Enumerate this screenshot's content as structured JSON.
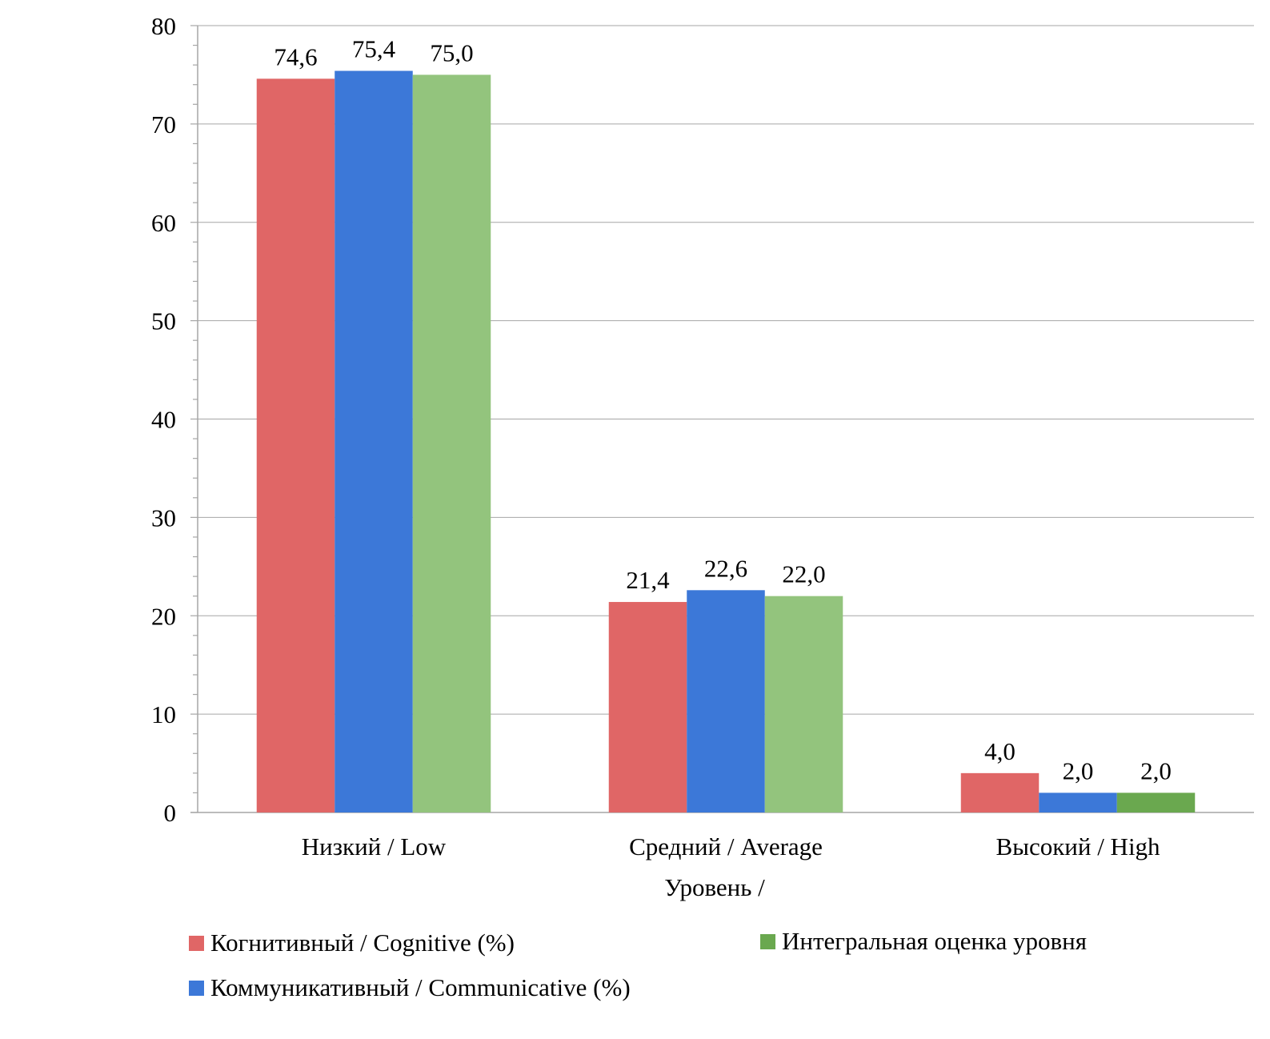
{
  "chart_data": {
    "type": "bar",
    "categories": [
      "Низкий / Low",
      "Средний / Average",
      "Высокий / High"
    ],
    "series": [
      {
        "name": "Когнитивный / Cognitive (%)",
        "values": [
          74.6,
          21.4,
          4.0
        ],
        "labels": [
          "74,6",
          "21,4",
          "4,0"
        ]
      },
      {
        "name": "Коммуникативный / Communicative (%)",
        "values": [
          75.4,
          22.6,
          2.0
        ],
        "labels": [
          "75,4",
          "22,6",
          "2,0"
        ]
      },
      {
        "name": "Интегральная оценка уровня",
        "values": [
          75.0,
          22.0,
          2.0
        ],
        "labels": [
          "75,0",
          "22,0",
          "2,0"
        ]
      }
    ],
    "colors": [
      "#e06666",
      "#3c78d8",
      "#93c47d"
    ],
    "highlight_color": "#6aa84f",
    "xlabel": "Уровень /",
    "ylabel": "",
    "ylim": [
      0,
      80
    ],
    "yticks": [
      0,
      10,
      20,
      30,
      40,
      50,
      60,
      70,
      80
    ],
    "grid": true,
    "legend_position": "bottom"
  }
}
